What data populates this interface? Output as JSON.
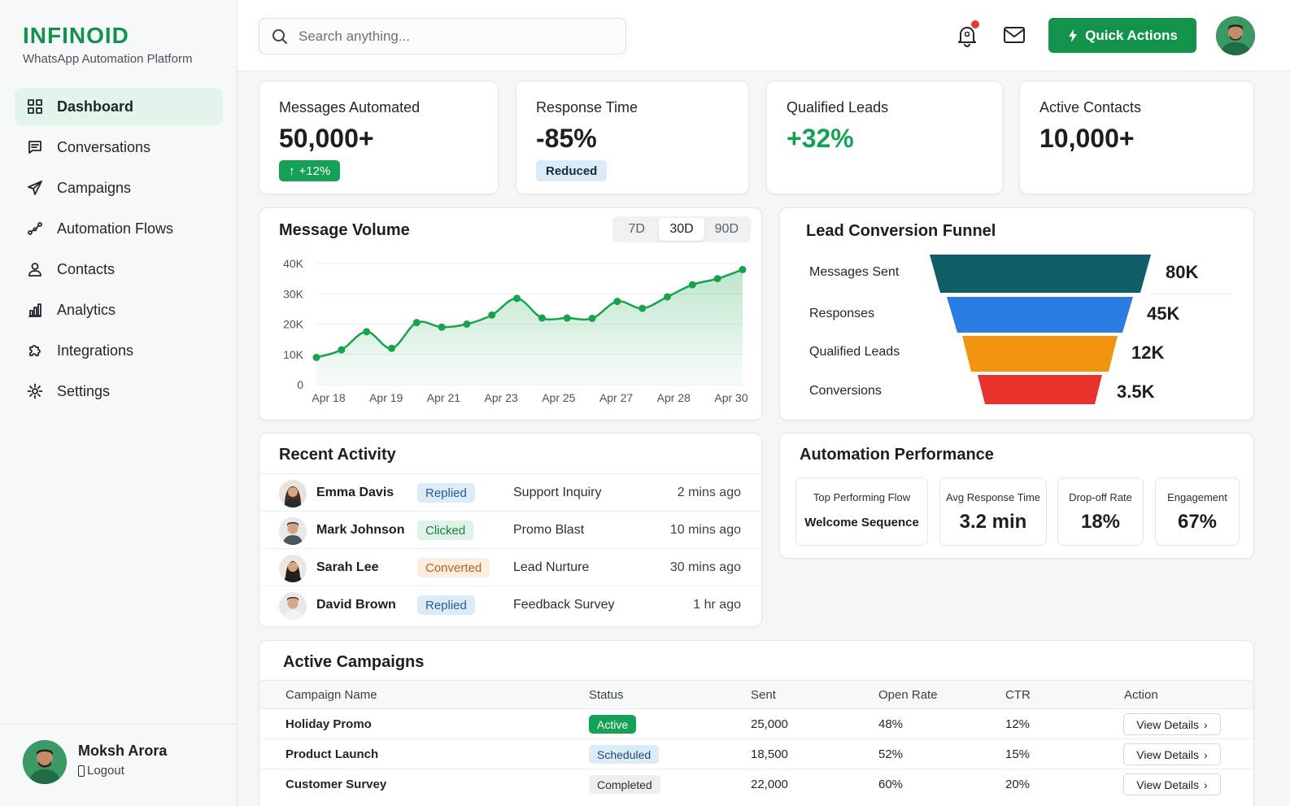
{
  "brand": {
    "name": "INFINOID",
    "tagline": "WhatsApp Automation Platform"
  },
  "sidebar": {
    "items": [
      {
        "label": "Dashboard",
        "icon": "grid-icon",
        "active": true
      },
      {
        "label": "Conversations",
        "icon": "chat-icon"
      },
      {
        "label": "Campaigns",
        "icon": "send-icon"
      },
      {
        "label": "Automation Flows",
        "icon": "flow-icon"
      },
      {
        "label": "Contacts",
        "icon": "user-icon"
      },
      {
        "label": "Analytics",
        "icon": "bar-chart-icon"
      },
      {
        "label": "Integrations",
        "icon": "puzzle-icon"
      },
      {
        "label": "Settings",
        "icon": "gear-icon"
      }
    ],
    "user": {
      "name": "Moksh Arora",
      "logout_label": "Logout"
    }
  },
  "header": {
    "search_placeholder": "Search anything...",
    "quick_actions_label": "Quick Actions"
  },
  "stats": [
    {
      "label": "Messages Automated",
      "value": "50,000+",
      "badge": "+12%"
    },
    {
      "label": "Response Time",
      "value": "-85%",
      "badge": "Reduced"
    },
    {
      "label": "Qualified Leads",
      "value": "+32%"
    },
    {
      "label": "Active Contacts",
      "value": "10,000+"
    }
  ],
  "message_volume": {
    "title": "Message Volume",
    "ranges": [
      "7D",
      "30D",
      "90D"
    ],
    "active_range": "30D"
  },
  "chart_data": {
    "type": "area",
    "title": "Message Volume",
    "x_ticks": [
      "Apr 18",
      "Apr 19",
      "Apr 21",
      "Apr 23",
      "Apr 25",
      "Apr 27",
      "Apr 28",
      "Apr 30"
    ],
    "y_ticks": [
      "40K",
      "30K",
      "20K",
      "10K",
      "0"
    ],
    "ylim": [
      0,
      40000
    ],
    "grid": true,
    "color": "#16a34a",
    "series": [
      {
        "values": [
          9000,
          11500,
          17500,
          12000,
          20500,
          19000,
          20000,
          23000,
          28500,
          22000,
          22000,
          21900,
          27500,
          25200,
          29000,
          33000,
          35000,
          38000
        ]
      }
    ]
  },
  "funnel": {
    "title": "Lead Conversion Funnel",
    "stages": [
      {
        "label": "Messages Sent",
        "value": "80K",
        "color": "#0f5e68"
      },
      {
        "label": "Responses",
        "value": "45K",
        "color": "#2a7de1"
      },
      {
        "label": "Qualified Leads",
        "value": "12K",
        "color": "#f2940f"
      },
      {
        "label": "Conversions",
        "value": "3.5K",
        "color": "#e8322b"
      }
    ]
  },
  "activity": {
    "title": "Recent Activity",
    "rows": [
      {
        "name": "Emma Davis",
        "status": "Replied",
        "campaign": "Support Inquiry",
        "time": "2 mins ago"
      },
      {
        "name": "Mark Johnson",
        "status": "Clicked",
        "campaign": "Promo Blast",
        "time": "10 mins ago"
      },
      {
        "name": "Sarah Lee",
        "status": "Converted",
        "campaign": "Lead Nurture",
        "time": "30 mins ago"
      },
      {
        "name": "David Brown",
        "status": "Replied",
        "campaign": "Feedback Survey",
        "time": "1 hr ago"
      }
    ]
  },
  "automation": {
    "title": "Automation Performance",
    "metrics": [
      {
        "label": "Top Performing Flow",
        "value": "Welcome Sequence"
      },
      {
        "label": "Avg Response Time",
        "value": "3.2 min"
      },
      {
        "label": "Drop-off Rate",
        "value": "18%"
      },
      {
        "label": "Engagement",
        "value": "67%"
      }
    ]
  },
  "campaigns": {
    "title": "Active Campaigns",
    "columns": [
      "Campaign Name",
      "Status",
      "Sent",
      "Open Rate",
      "CTR",
      "Action"
    ],
    "rows": [
      {
        "name": "Holiday Promo",
        "status": "Active",
        "sent": "25,000",
        "open_rate": "48%",
        "ctr": "12%",
        "action": "View Details"
      },
      {
        "name": "Product Launch",
        "status": "Scheduled",
        "sent": "18,500",
        "open_rate": "52%",
        "ctr": "15%",
        "action": "View Details"
      },
      {
        "name": "Customer Survey",
        "status": "Completed",
        "sent": "22,000",
        "open_rate": "60%",
        "ctr": "20%",
        "action": "View Details"
      }
    ]
  }
}
